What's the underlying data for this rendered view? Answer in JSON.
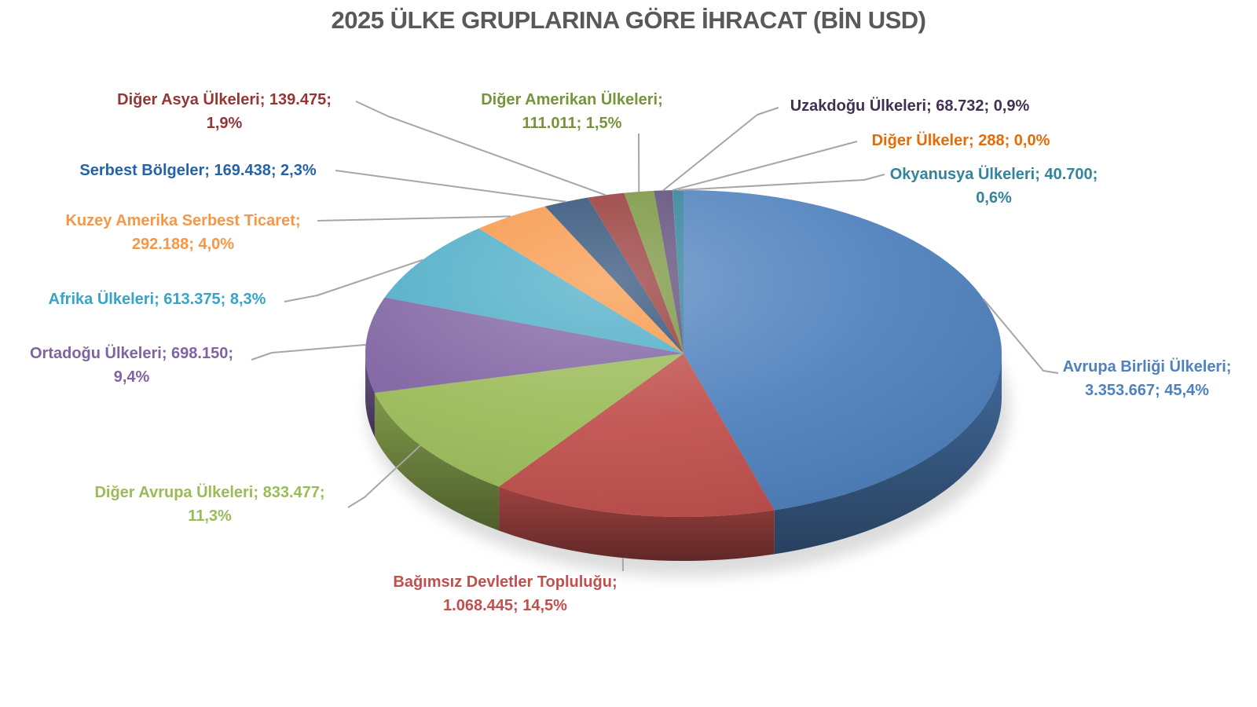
{
  "page": {
    "background": "#FFFFFF"
  },
  "chart_data": {
    "type": "pie",
    "projection": "3d",
    "title": "2025 ÜLKE GRUPLARINA GÖRE İHRACAT (BİN USD)",
    "title_color": "#595959",
    "unit": "BİN USD",
    "label_format": "name; value; percent",
    "leader_line_color": "#A6A6A6",
    "legend_position": "none",
    "start_angle_deg": 0,
    "direction": "clockwise",
    "series": [
      {
        "name": "Avrupa Birliği Ülkeleri",
        "value": 3353667,
        "display_value": "3.353.667",
        "pct": "45,4%",
        "color": "#4F81BD",
        "label_color": "#4F81BD",
        "lines": [
          "Avrupa Birliği Ülkeleri;",
          "3.353.667; 45,4%"
        ]
      },
      {
        "name": "Bağımsız Devletler Topluluğu",
        "value": 1068445,
        "display_value": "1.068.445",
        "pct": "14,5%",
        "color": "#C0504D",
        "label_color": "#C0504D",
        "lines": [
          "Bağımsız Devletler Topluluğu;",
          "1.068.445; 14,5%"
        ]
      },
      {
        "name": "Diğer Avrupa Ülkeleri",
        "value": 833477,
        "display_value": "833.477",
        "pct": "11,3%",
        "color": "#9BBB59",
        "label_color": "#9BBB59",
        "lines": [
          "Diğer Avrupa Ülkeleri; 833.477;",
          "11,3%"
        ]
      },
      {
        "name": "Ortadoğu Ülkeleri",
        "value": 698150,
        "display_value": "698.150",
        "pct": "9,4%",
        "color": "#8064A2",
        "label_color": "#8064A2",
        "lines": [
          "Ortadoğu Ülkeleri; 698.150;",
          "9,4%"
        ]
      },
      {
        "name": "Afrika Ülkeleri",
        "value": 613375,
        "display_value": "613.375",
        "pct": "8,3%",
        "color": "#4BACC6",
        "label_color": "#38A3C6",
        "lines": [
          "Afrika Ülkeleri; 613.375; 8,3%"
        ]
      },
      {
        "name": "Kuzey Amerika Serbest Ticaret",
        "value": 292188,
        "display_value": "292.188",
        "pct": "4,0%",
        "color": "#F79646",
        "label_color": "#F79646",
        "lines": [
          "Kuzey Amerika Serbest Ticaret;",
          "292.188; 4,0%"
        ]
      },
      {
        "name": "Serbest Bölgeler",
        "value": 169438,
        "display_value": "169.438",
        "pct": "2,3%",
        "color": "#2C4D75",
        "label_color": "#2563A8",
        "lines": [
          "Serbest Bölgeler; 169.438; 2,3%"
        ]
      },
      {
        "name": "Diğer Asya Ülkeleri",
        "value": 139475,
        "display_value": "139.475",
        "pct": "1,9%",
        "color": "#953735",
        "label_color": "#943634",
        "lines": [
          "Diğer Asya Ülkeleri; 139.475;",
          "1,9%"
        ]
      },
      {
        "name": "Diğer Amerikan Ülkeleri",
        "value": 111011,
        "display_value": "111.011",
        "pct": "1,5%",
        "color": "#77933C",
        "label_color": "#77933C",
        "lines": [
          "Diğer Amerikan Ülkeleri;",
          "111.011; 1,5%"
        ]
      },
      {
        "name": "Uzakdoğu Ülkeleri",
        "value": 68732,
        "display_value": "68.732",
        "pct": "0,9%",
        "color": "#5C4A77",
        "label_color": "#403152",
        "lines": [
          "Uzakdoğu Ülkeleri; 68.732; 0,9%"
        ]
      },
      {
        "name": "Diğer Ülkeler",
        "value": 288,
        "display_value": "288",
        "pct": "0,0%",
        "color": "#E36C09",
        "label_color": "#E36C09",
        "lines": [
          "Diğer Ülkeler; 288; 0,0%"
        ]
      },
      {
        "name": "Okyanusya Ülkeleri",
        "value": 40700,
        "display_value": "40.700",
        "pct": "0,6%",
        "color": "#2E8099",
        "label_color": "#31849B",
        "lines": [
          "Okyanusya Ülkeleri; 40.700;",
          "0,6%"
        ]
      }
    ]
  }
}
